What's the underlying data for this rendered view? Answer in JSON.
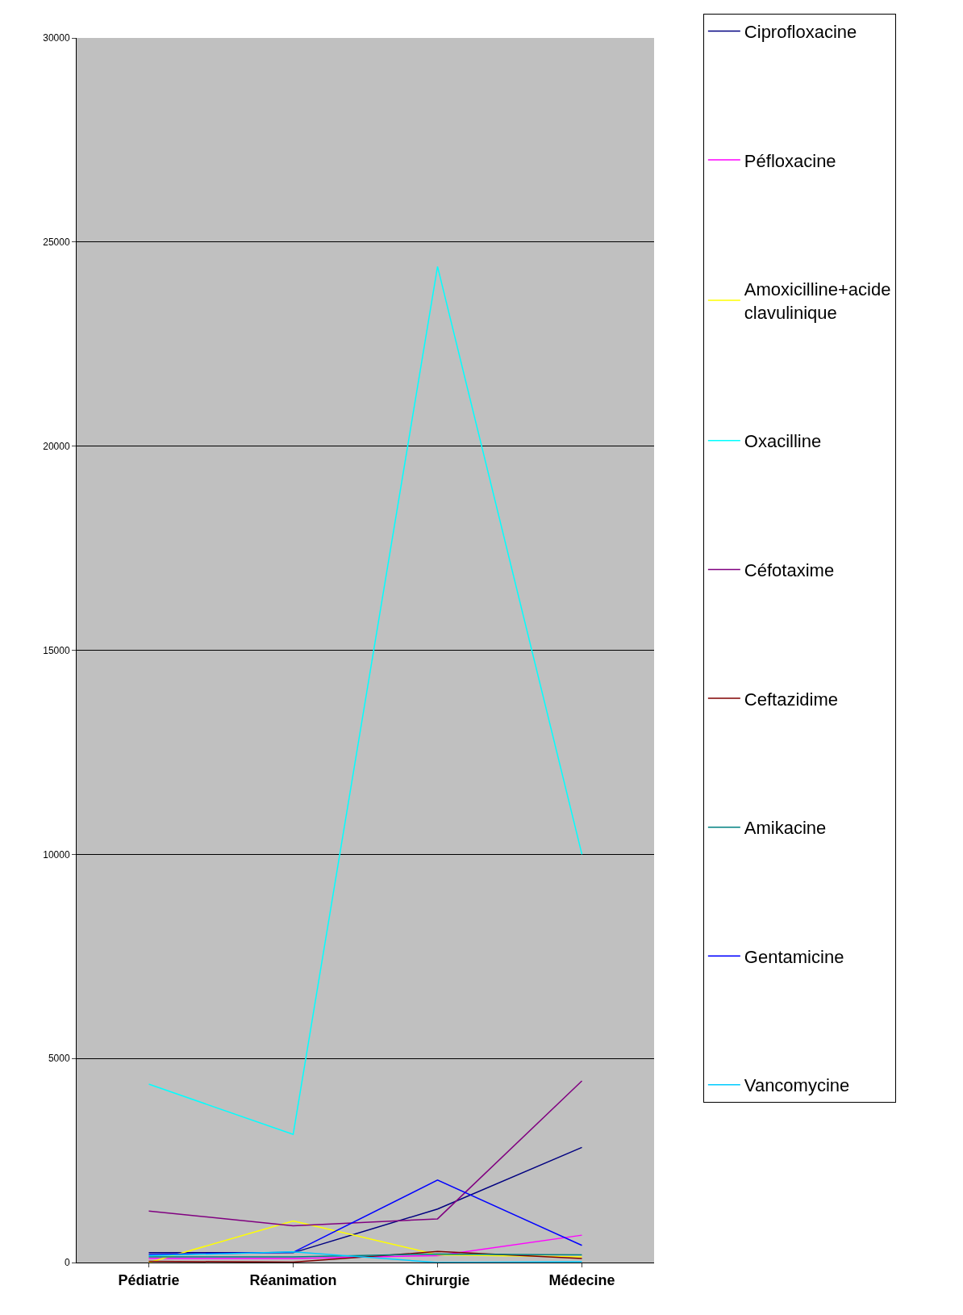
{
  "chart_data": {
    "type": "line",
    "categories": [
      "Pédiatrie",
      "Réanimation",
      "Chirurgie",
      "Médecine"
    ],
    "ylim": [
      0,
      30000
    ],
    "yticks": [
      0,
      5000,
      10000,
      15000,
      20000,
      25000,
      30000
    ],
    "grid": "y",
    "legend": "right",
    "marker": "none",
    "line_style": "solid",
    "series": [
      {
        "name": "Ciprofloxacine",
        "color": "#000080",
        "values": [
          240,
          240,
          1310,
          2820
        ]
      },
      {
        "name": "Péfloxacine",
        "color": "#ff00ff",
        "values": [
          100,
          100,
          170,
          670
        ]
      },
      {
        "name": "Amoxicilline+acide clavulinique",
        "color": "#ffff00",
        "values": [
          0,
          1020,
          190,
          140
        ]
      },
      {
        "name": "Oxacilline",
        "color": "#00ffff",
        "values": [
          4370,
          3140,
          24400,
          10000
        ]
      },
      {
        "name": "Céfotaxime",
        "color": "#800080",
        "values": [
          1260,
          900,
          1070,
          4450
        ]
      },
      {
        "name": "Ceftazidime",
        "color": "#800000",
        "values": [
          30,
          10,
          270,
          100
        ]
      },
      {
        "name": "Amikacine",
        "color": "#008080",
        "values": [
          140,
          140,
          210,
          190
        ]
      },
      {
        "name": "Gentamicine",
        "color": "#0000ff",
        "values": [
          200,
          250,
          2020,
          420
        ]
      },
      {
        "name": "Vancomycine",
        "color": "#00ccff",
        "values": [
          170,
          260,
          0,
          20
        ]
      }
    ]
  }
}
